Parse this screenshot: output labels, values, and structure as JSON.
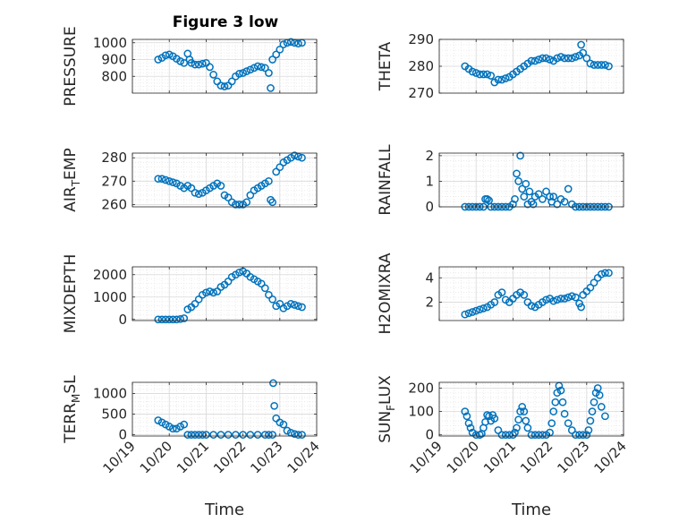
{
  "figure_title": "Figure 3 low",
  "x_axis": {
    "label": "Time",
    "ticks": [
      "10/19",
      "10/20",
      "10/21",
      "10/22",
      "10/23",
      "10/24"
    ],
    "range_days": [
      19,
      24
    ]
  },
  "colors": {
    "marker": "#0072BD",
    "grid_major": "#d9d9d9",
    "grid_minor": "#e6e6e6",
    "axis": "#262626"
  },
  "chart_data": [
    {
      "type": "scatter",
      "ylabel": "PRESSURE",
      "ylim": [
        700,
        1020
      ],
      "yticks": [
        800,
        900,
        1000
      ],
      "grid": true,
      "x": [
        19.7,
        19.8,
        19.9,
        20.0,
        20.1,
        20.2,
        20.3,
        20.4,
        20.5,
        20.55,
        20.6,
        20.7,
        20.8,
        20.9,
        21.0,
        21.1,
        21.2,
        21.3,
        21.4,
        21.5,
        21.6,
        21.7,
        21.8,
        21.9,
        22.0,
        22.1,
        22.2,
        22.3,
        22.4,
        22.5,
        22.6,
        22.7,
        22.75,
        22.8,
        22.9,
        23.0,
        23.1,
        23.2,
        23.3,
        23.4,
        23.5,
        23.6
      ],
      "y": [
        900,
        910,
        925,
        930,
        920,
        905,
        890,
        880,
        935,
        900,
        880,
        870,
        870,
        875,
        880,
        855,
        810,
        770,
        745,
        740,
        745,
        770,
        800,
        815,
        820,
        830,
        840,
        850,
        860,
        855,
        850,
        820,
        730,
        900,
        930,
        960,
        990,
        1000,
        1005,
        1000,
        995,
        1000
      ]
    },
    {
      "type": "scatter",
      "ylabel": "THETA",
      "ylim": [
        270,
        290
      ],
      "yticks": [
        270,
        280,
        290
      ],
      "grid": true,
      "x": [
        19.7,
        19.8,
        19.9,
        20.0,
        20.1,
        20.2,
        20.3,
        20.4,
        20.5,
        20.6,
        20.7,
        20.8,
        20.9,
        21.0,
        21.1,
        21.2,
        21.3,
        21.4,
        21.5,
        21.6,
        21.7,
        21.8,
        21.9,
        22.0,
        22.1,
        22.2,
        22.3,
        22.4,
        22.5,
        22.6,
        22.7,
        22.8,
        22.85,
        22.9,
        23.0,
        23.1,
        23.2,
        23.3,
        23.4,
        23.5,
        23.6
      ],
      "y": [
        280,
        279,
        278,
        277.5,
        277,
        277,
        277,
        276.5,
        274,
        275,
        275,
        275.5,
        276,
        277,
        278,
        279,
        280,
        281,
        282,
        282,
        282.5,
        283,
        283,
        282.5,
        282,
        283,
        283.5,
        283,
        283,
        283,
        283.5,
        284,
        288,
        285,
        283,
        281,
        280.5,
        280.5,
        280.5,
        280.5,
        280
      ]
    },
    {
      "type": "scatter",
      "ylabel": "AIR_T_EMP",
      "ylabel_parts": [
        "AIR",
        "T",
        "EMP"
      ],
      "ylim": [
        259,
        282
      ],
      "yticks": [
        260,
        270,
        280
      ],
      "grid": true,
      "x": [
        19.7,
        19.8,
        19.9,
        20.0,
        20.1,
        20.2,
        20.3,
        20.4,
        20.5,
        20.6,
        20.7,
        20.8,
        20.9,
        21.0,
        21.1,
        21.2,
        21.3,
        21.4,
        21.5,
        21.6,
        21.7,
        21.8,
        21.9,
        22.0,
        22.1,
        22.2,
        22.3,
        22.4,
        22.5,
        22.6,
        22.7,
        22.75,
        22.8,
        22.9,
        23.0,
        23.1,
        23.2,
        23.3,
        23.4,
        23.5,
        23.6
      ],
      "y": [
        271,
        271,
        270.5,
        270,
        269.5,
        269,
        268,
        267,
        268,
        267,
        265,
        264.5,
        265,
        266,
        267,
        268,
        269,
        268,
        264,
        263,
        261,
        260,
        260,
        260,
        261,
        264,
        266,
        267,
        268,
        269,
        270,
        262,
        261,
        274,
        276,
        278,
        279,
        280,
        281,
        280.5,
        280
      ]
    },
    {
      "type": "scatter",
      "ylabel": "RAINFALL",
      "ylim": [
        0,
        2.1
      ],
      "yticks": [
        0,
        1,
        2
      ],
      "grid": true,
      "x": [
        19.7,
        19.8,
        19.9,
        20.0,
        20.1,
        20.2,
        20.25,
        20.3,
        20.35,
        20.4,
        20.5,
        20.6,
        20.7,
        20.8,
        20.9,
        21.0,
        21.05,
        21.1,
        21.15,
        21.2,
        21.25,
        21.3,
        21.35,
        21.4,
        21.45,
        21.5,
        21.55,
        21.6,
        21.7,
        21.8,
        21.9,
        22.0,
        22.05,
        22.1,
        22.2,
        22.3,
        22.4,
        22.5,
        22.6,
        22.7,
        22.8,
        22.9,
        23.0,
        23.1,
        23.2,
        23.3,
        23.4,
        23.5,
        23.6
      ],
      "y": [
        0,
        0,
        0,
        0,
        0,
        0,
        0.3,
        0.3,
        0.25,
        0,
        0,
        0,
        0,
        0,
        0,
        0.1,
        0.3,
        1.3,
        1.0,
        2.0,
        0.7,
        0.4,
        0.9,
        0.1,
        0.6,
        0.2,
        0.1,
        0.4,
        0.5,
        0.3,
        0.6,
        0.4,
        0.2,
        0.4,
        0.1,
        0.3,
        0.2,
        0.7,
        0.1,
        0,
        0,
        0,
        0,
        0,
        0,
        0,
        0,
        0,
        0
      ]
    },
    {
      "type": "scatter",
      "ylabel": "MIXDEPTH",
      "ylim": [
        -50,
        2350
      ],
      "yticks": [
        0,
        1000,
        2000
      ],
      "grid": true,
      "x": [
        19.7,
        19.8,
        19.9,
        20.0,
        20.1,
        20.2,
        20.3,
        20.4,
        20.5,
        20.6,
        20.7,
        20.8,
        20.9,
        21.0,
        21.1,
        21.2,
        21.3,
        21.4,
        21.5,
        21.6,
        21.7,
        21.8,
        21.9,
        22.0,
        22.1,
        22.2,
        22.3,
        22.4,
        22.5,
        22.6,
        22.7,
        22.8,
        22.9,
        23.0,
        23.1,
        23.2,
        23.3,
        23.4,
        23.5,
        23.6
      ],
      "y": [
        0,
        0,
        0,
        0,
        0,
        0,
        20,
        50,
        450,
        550,
        700,
        900,
        1100,
        1200,
        1250,
        1200,
        1250,
        1450,
        1550,
        1700,
        1900,
        2000,
        2100,
        2150,
        2050,
        1900,
        1800,
        1700,
        1600,
        1400,
        1100,
        900,
        600,
        700,
        500,
        600,
        700,
        650,
        600,
        550
      ]
    },
    {
      "type": "scatter",
      "ylabel": "H2OMIXRA",
      "ylim": [
        0.5,
        4.9
      ],
      "yticks": [
        2,
        4
      ],
      "grid": true,
      "x": [
        19.7,
        19.8,
        19.9,
        20.0,
        20.1,
        20.2,
        20.3,
        20.4,
        20.5,
        20.6,
        20.7,
        20.8,
        20.9,
        21.0,
        21.1,
        21.2,
        21.3,
        21.4,
        21.5,
        21.6,
        21.7,
        21.8,
        21.9,
        22.0,
        22.1,
        22.2,
        22.3,
        22.4,
        22.5,
        22.6,
        22.7,
        22.8,
        22.85,
        22.9,
        23.0,
        23.1,
        23.2,
        23.3,
        23.4,
        23.5,
        23.6
      ],
      "y": [
        1.0,
        1.1,
        1.2,
        1.3,
        1.4,
        1.5,
        1.6,
        1.8,
        2.0,
        2.6,
        2.8,
        2.2,
        2.0,
        2.3,
        2.6,
        2.8,
        2.6,
        2.0,
        1.7,
        1.6,
        1.8,
        2.0,
        2.2,
        2.3,
        2.1,
        2.2,
        2.3,
        2.3,
        2.4,
        2.5,
        2.4,
        1.9,
        1.6,
        2.6,
        2.9,
        3.2,
        3.6,
        4.0,
        4.3,
        4.4,
        4.4
      ]
    },
    {
      "type": "scatter",
      "ylabel": "TERR_M_SL",
      "ylabel_parts": [
        "TERR",
        "M",
        "SL"
      ],
      "ylim": [
        -30,
        1270
      ],
      "yticks": [
        0,
        500,
        1000
      ],
      "grid": true,
      "x": [
        19.7,
        19.8,
        19.9,
        20.0,
        20.1,
        20.2,
        20.3,
        20.4,
        20.5,
        20.6,
        20.7,
        20.8,
        20.9,
        21.0,
        21.2,
        21.4,
        21.6,
        21.8,
        22.0,
        22.2,
        22.4,
        22.6,
        22.7,
        22.8,
        22.82,
        22.85,
        22.9,
        23.0,
        23.1,
        23.2,
        23.3,
        23.4,
        23.5,
        23.6
      ],
      "y": [
        350,
        300,
        250,
        200,
        150,
        150,
        200,
        250,
        0,
        0,
        0,
        0,
        0,
        0,
        0,
        0,
        0,
        0,
        0,
        0,
        0,
        0,
        0,
        0,
        1250,
        700,
        400,
        300,
        250,
        100,
        50,
        20,
        0,
        0
      ]
    },
    {
      "type": "scatter",
      "ylabel": "SUN_F_LUX",
      "ylabel_parts": [
        "SUN",
        "F",
        "LUX"
      ],
      "ylim": [
        -5,
        225
      ],
      "yticks": [
        0,
        100,
        200
      ],
      "grid": true,
      "x": [
        19.7,
        19.75,
        19.8,
        19.85,
        19.9,
        20.0,
        20.1,
        20.15,
        20.2,
        20.25,
        20.3,
        20.35,
        20.4,
        20.45,
        20.5,
        20.6,
        20.7,
        20.8,
        20.9,
        21.0,
        21.05,
        21.1,
        21.15,
        21.2,
        21.25,
        21.3,
        21.35,
        21.4,
        21.5,
        21.6,
        21.7,
        21.8,
        21.9,
        22.0,
        22.05,
        22.1,
        22.15,
        22.2,
        22.25,
        22.3,
        22.35,
        22.4,
        22.5,
        22.6,
        22.7,
        22.8,
        22.9,
        23.0,
        23.05,
        23.1,
        23.15,
        23.2,
        23.25,
        23.3,
        23.35,
        23.4,
        23.5
      ],
      "y": [
        100,
        80,
        50,
        30,
        10,
        0,
        0,
        5,
        30,
        55,
        85,
        80,
        60,
        85,
        70,
        20,
        0,
        0,
        0,
        0,
        10,
        30,
        65,
        100,
        120,
        100,
        60,
        30,
        0,
        0,
        0,
        0,
        0,
        10,
        50,
        100,
        140,
        180,
        210,
        190,
        140,
        90,
        50,
        20,
        0,
        0,
        0,
        0,
        20,
        60,
        100,
        140,
        180,
        200,
        170,
        120,
        80
      ]
    }
  ]
}
